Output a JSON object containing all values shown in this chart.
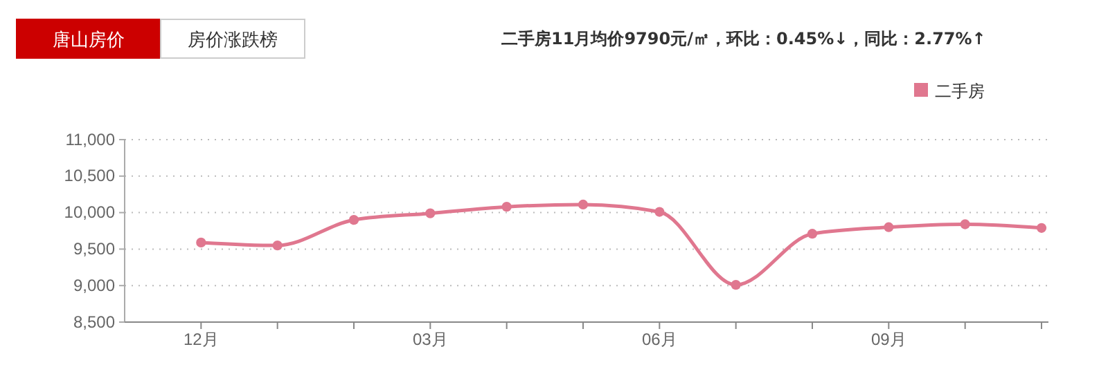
{
  "chart_data": {
    "type": "line",
    "title": "二手房11月均价9790元/㎡，环比：0.45%↓，同比：2.77%↑",
    "annotations": [
      "唐山房价",
      "房价涨跌榜"
    ],
    "categories": [
      "12月",
      null,
      null,
      "03月",
      null,
      null,
      "06月",
      null,
      null,
      "09月",
      null,
      null
    ],
    "series": [
      {
        "name": "二手房",
        "color": "#e0778f",
        "values": [
          9590,
          9550,
          9900,
          9990,
          10080,
          10110,
          10010,
          9010,
          9710,
          9800,
          9840,
          9790
        ]
      }
    ],
    "ylim": [
      8500,
      11000
    ],
    "yticks": [
      {
        "value": 8500,
        "label": "8,500"
      },
      {
        "value": 9000,
        "label": "9,000"
      },
      {
        "value": 9500,
        "label": "9,500"
      },
      {
        "value": 10000,
        "label": "10,000"
      },
      {
        "value": 10500,
        "label": "10,500"
      },
      {
        "value": 11000,
        "label": "11,000"
      }
    ],
    "grid": "y",
    "legend": "top right",
    "marker": "circle",
    "line_style": "solid"
  }
}
